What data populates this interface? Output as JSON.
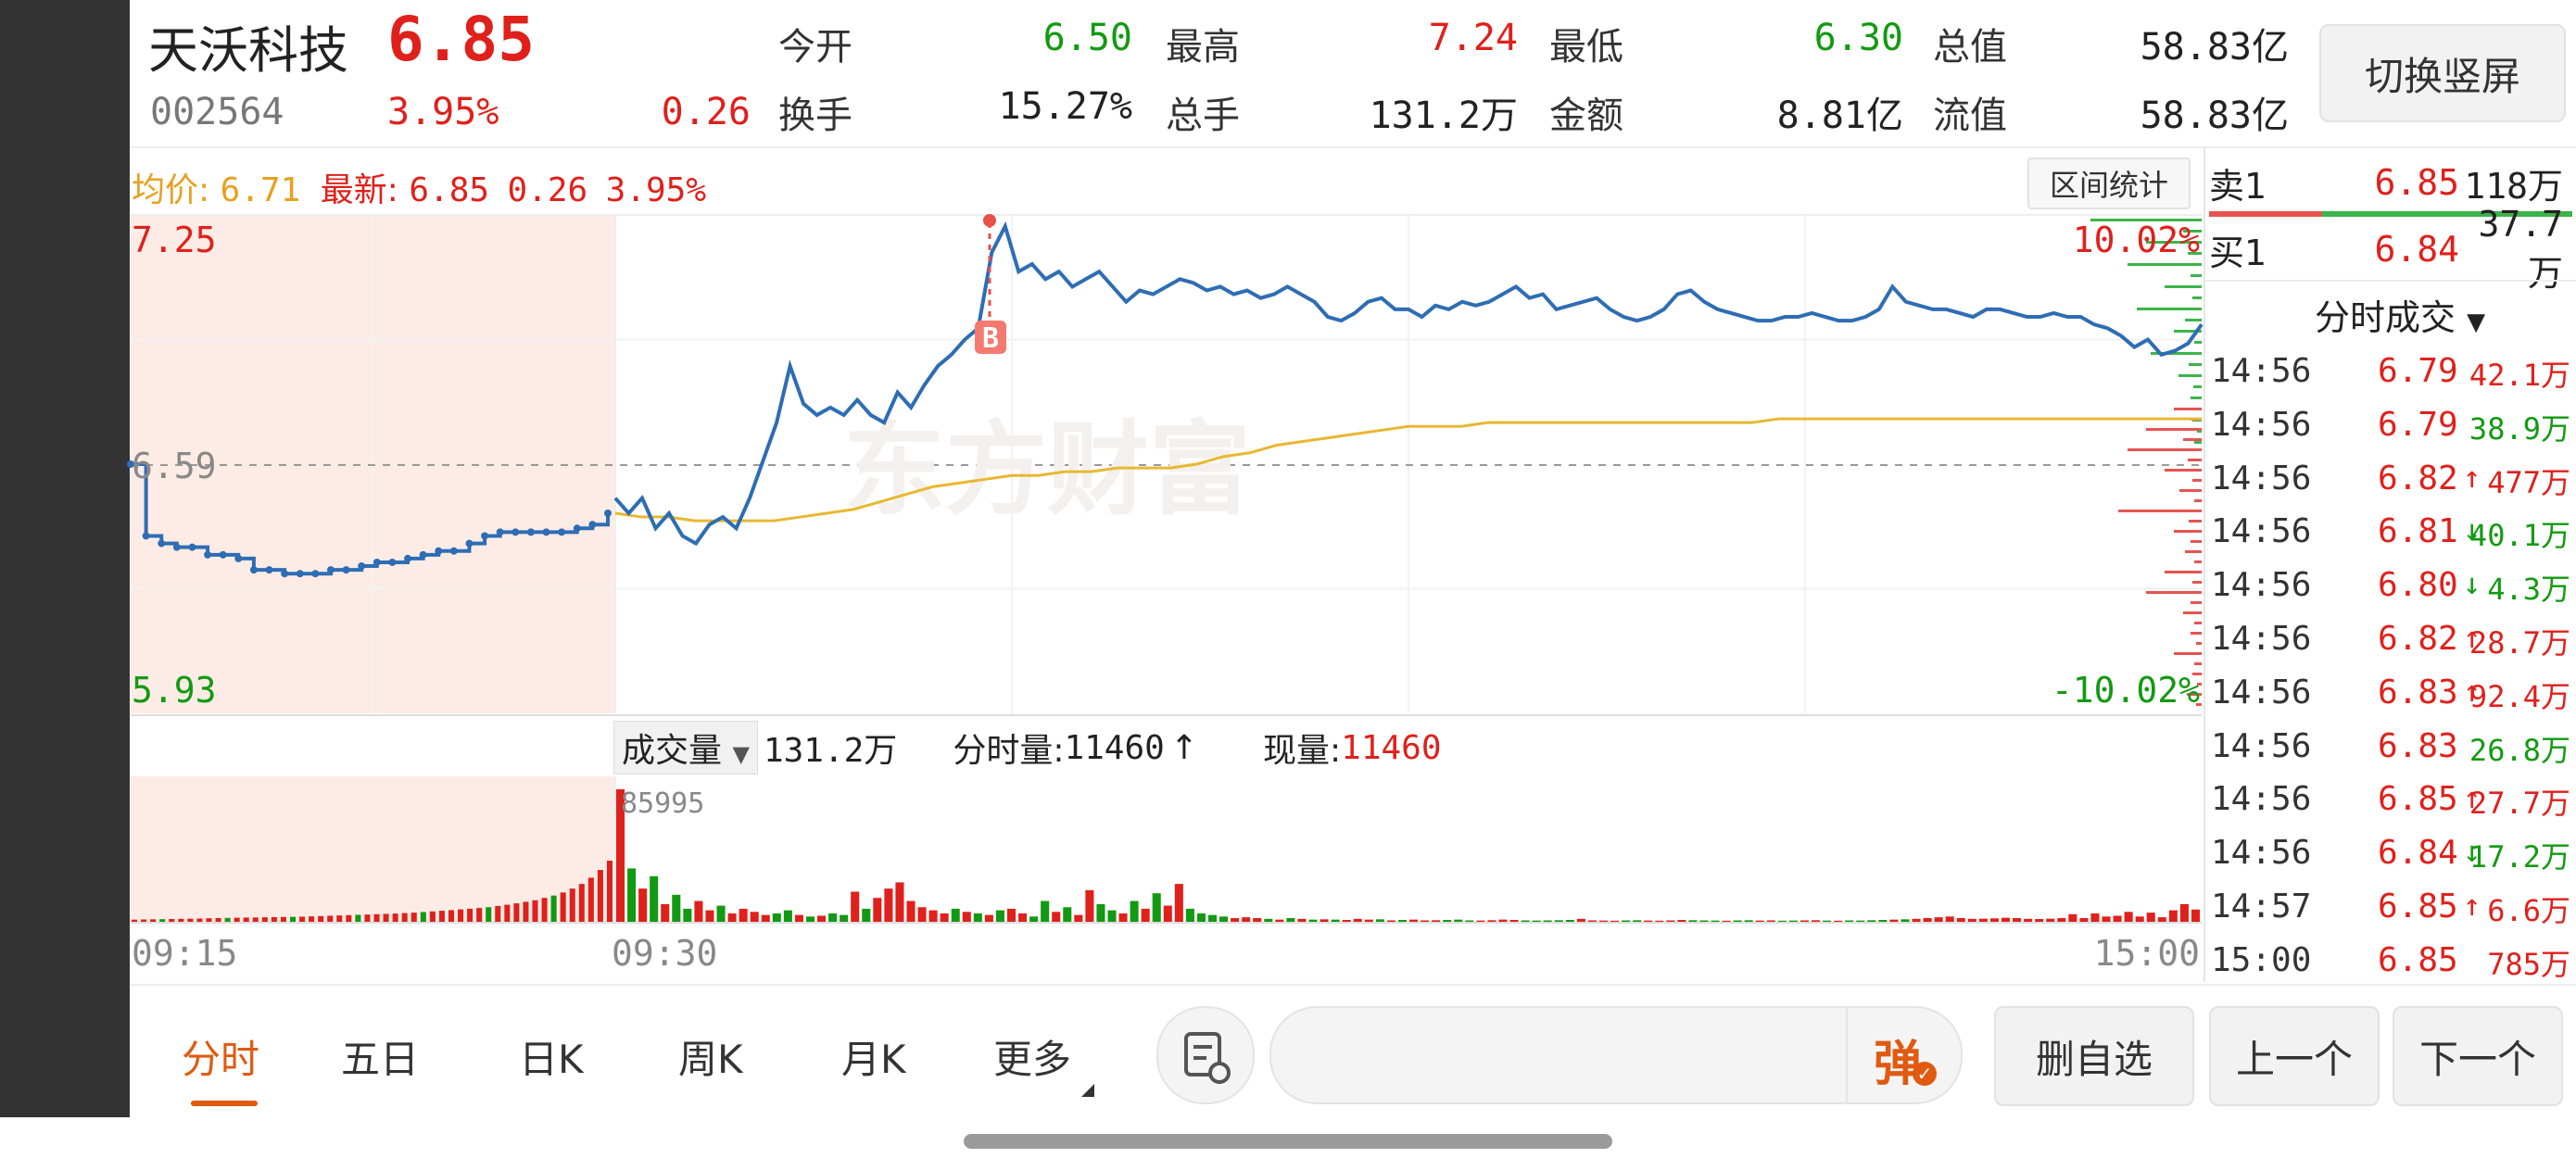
{
  "header": {
    "name": "天沃科技",
    "price": "6.85",
    "code": "002564",
    "change_pct": "3.95%",
    "change": "0.26",
    "stats": [
      {
        "label": "今开",
        "value": "6.50",
        "color": "#129a12"
      },
      {
        "label": "最高",
        "value": "7.24",
        "color": "#e0201b"
      },
      {
        "label": "最低",
        "value": "6.30",
        "color": "#129a12"
      },
      {
        "label": "总值",
        "value": "58.83亿",
        "color": "#222222"
      },
      {
        "label": "换手",
        "value": "15.27%",
        "color": "#222222"
      },
      {
        "label": "总手",
        "value": "131.2万",
        "color": "#222222"
      },
      {
        "label": "金额",
        "value": "8.81亿",
        "color": "#222222"
      },
      {
        "label": "流值",
        "value": "58.83亿",
        "color": "#222222"
      }
    ],
    "switch_button": "切换竖屏"
  },
  "summary_bar": {
    "avg_label": "均价:",
    "avg_value": "6.71",
    "latest_label": "最新:",
    "latest_value": "6.85",
    "latest_change": "0.26",
    "latest_pct": "3.95%",
    "range_button": "区间统计"
  },
  "watermark": "东方财富",
  "chart_data": {
    "type": "line",
    "prev_close": 6.59,
    "ylim": [
      5.93,
      7.25
    ],
    "tick_labels": {
      "top": "7.25",
      "mid": "6.59",
      "bottom": "5.93",
      "top_pct": "10.02%",
      "bottom_pct": "-10.02%"
    },
    "x_labels": [
      "09:15",
      "09:30",
      "15:00"
    ],
    "marker": "B",
    "auction_minutes": 15,
    "session_minutes": 240,
    "price_auction": [
      6.59,
      6.4,
      6.38,
      6.37,
      6.37,
      6.35,
      6.35,
      6.34,
      6.31,
      6.31,
      6.3,
      6.3,
      6.3,
      6.31,
      6.31,
      6.32,
      6.33,
      6.33,
      6.34,
      6.35,
      6.36,
      6.36,
      6.38,
      6.4,
      6.41,
      6.41,
      6.41,
      6.41,
      6.41,
      6.42,
      6.43,
      6.46
    ],
    "price": [
      6.5,
      6.46,
      6.5,
      6.42,
      6.46,
      6.4,
      6.38,
      6.43,
      6.45,
      6.42,
      6.5,
      6.6,
      6.7,
      6.85,
      6.75,
      6.72,
      6.74,
      6.72,
      6.76,
      6.72,
      6.7,
      6.78,
      6.74,
      6.8,
      6.85,
      6.88,
      6.92,
      6.95,
      7.15,
      7.22,
      7.1,
      7.12,
      7.08,
      7.1,
      7.06,
      7.08,
      7.1,
      7.06,
      7.02,
      7.05,
      7.04,
      7.06,
      7.08,
      7.07,
      7.05,
      7.06,
      7.04,
      7.05,
      7.03,
      7.04,
      7.06,
      7.04,
      7.02,
      6.98,
      6.97,
      6.99,
      7.02,
      7.03,
      7.0,
      7.0,
      6.98,
      7.01,
      7.0,
      7.02,
      7.01,
      7.02,
      7.04,
      7.06,
      7.03,
      7.04,
      7.0,
      7.01,
      7.02,
      7.03,
      7.0,
      6.98,
      6.97,
      6.98,
      7.0,
      7.04,
      7.05,
      7.02,
      7.0,
      6.99,
      6.98,
      6.97,
      6.97,
      6.98,
      6.98,
      6.99,
      6.98,
      6.97,
      6.97,
      6.98,
      7.0,
      7.06,
      7.02,
      7.01,
      7.0,
      7.0,
      6.99,
      6.98,
      7.0,
      7.0,
      6.99,
      6.98,
      6.98,
      6.99,
      6.98,
      6.98,
      6.96,
      6.95,
      6.93,
      6.9,
      6.92,
      6.88,
      6.89,
      6.91,
      6.96
    ],
    "avg": [
      6.46,
      6.45,
      6.45,
      6.44,
      6.44,
      6.44,
      6.44,
      6.45,
      6.46,
      6.47,
      6.49,
      6.51,
      6.53,
      6.54,
      6.55,
      6.56,
      6.56,
      6.57,
      6.57,
      6.58,
      6.58,
      6.58,
      6.59,
      6.61,
      6.62,
      6.64,
      6.65,
      6.66,
      6.67,
      6.68,
      6.69,
      6.69,
      6.69,
      6.7,
      6.7,
      6.7,
      6.7,
      6.7,
      6.7,
      6.7,
      6.7,
      6.7,
      6.7,
      6.7,
      6.71,
      6.71,
      6.71,
      6.71,
      6.71,
      6.71,
      6.71,
      6.71,
      6.71,
      6.71,
      6.71,
      6.71,
      6.71,
      6.71,
      6.71,
      6.71,
      6.71
    ],
    "volume_label": "成交量",
    "volume_total": "131.2万",
    "minute_volume_label": "分时量:",
    "minute_volume": "11460",
    "current_volume_label": "现量:",
    "current_volume": "11460",
    "vol_max_label": "85995",
    "vol_max": 85995,
    "volume_auction": [
      2000,
      2100,
      2200,
      2300,
      2400,
      2500,
      2600,
      2700,
      2900,
      3000,
      3100,
      3200,
      3300,
      3400,
      3500,
      3600,
      3700,
      3800,
      3900,
      4100,
      4300,
      4500,
      4700,
      4900,
      5100,
      5300,
      5500,
      5700,
      5900,
      6200,
      6500,
      6900,
      7300,
      7700,
      8100,
      8600,
      9000,
      9500,
      10000,
      10800,
      11600,
      12500,
      13500,
      14500,
      16000,
      17500,
      19500,
      22000,
      25000,
      29000,
      34000,
      40000
    ],
    "volume": [
      85995,
      35000,
      22000,
      30000,
      12000,
      18000,
      9000,
      14000,
      8000,
      11000,
      6000,
      9000,
      7000,
      5000,
      6000,
      8000,
      5000,
      4000,
      4500,
      6000,
      5000,
      20000,
      9000,
      16000,
      22000,
      26000,
      14000,
      10000,
      8000,
      6000,
      9000,
      7000,
      6000,
      5000,
      8000,
      9000,
      6000,
      4000,
      14000,
      7000,
      10000,
      5000,
      21000,
      12000,
      8000,
      6000,
      14000,
      9000,
      19000,
      11000,
      25000,
      9000,
      6000,
      5000,
      4000,
      3000,
      3500,
      3000,
      2500,
      2000,
      3000,
      2500,
      2000,
      2200,
      2000,
      1800,
      2500,
      2000,
      2200,
      1500,
      1800,
      2000,
      1500,
      1600,
      1800,
      2000,
      1500,
      1400,
      1600,
      2000,
      1800,
      1500,
      1400,
      1500,
      1600,
      1800,
      2500,
      1500,
      1400,
      1300,
      1500,
      1600,
      1400,
      1300,
      1500,
      1800,
      1600,
      1500,
      1400,
      1300,
      1500,
      1600,
      1400,
      1500,
      1300,
      1400,
      1500,
      1600,
      1400,
      1300,
      1500,
      1400,
      1600,
      1800,
      2000,
      2200,
      2500,
      3000,
      3500,
      4000,
      3000,
      2500,
      2600,
      2800,
      3200,
      3000,
      2500,
      2400,
      2600,
      3000,
      5500,
      3000,
      6000,
      4000,
      4500,
      7000,
      4000,
      6500,
      3500,
      8000,
      12000,
      8500
    ],
    "volume_colors_note": "red=up green=down"
  },
  "order_book": {
    "ask_label": "卖1",
    "ask_price": "6.85",
    "ask_vol": "118万",
    "bid_label": "买1",
    "bid_price": "6.84",
    "bid_vol": "37.7万",
    "ticks_title": "分时成交"
  },
  "ticks": [
    {
      "time": "14:56",
      "price": "6.79",
      "arrow": "",
      "vol": "42.1万",
      "vol_color": "#e0201b"
    },
    {
      "time": "14:56",
      "price": "6.79",
      "arrow": "",
      "vol": "38.9万",
      "vol_color": "#129a12"
    },
    {
      "time": "14:56",
      "price": "6.82",
      "arrow": "↑",
      "vol": "477万",
      "vol_color": "#e0201b"
    },
    {
      "time": "14:56",
      "price": "6.81",
      "arrow": "↓",
      "vol": "40.1万",
      "vol_color": "#129a12"
    },
    {
      "time": "14:56",
      "price": "6.80",
      "arrow": "↓",
      "vol": "4.3万",
      "vol_color": "#129a12"
    },
    {
      "time": "14:56",
      "price": "6.82",
      "arrow": "↑",
      "vol": "28.7万",
      "vol_color": "#e0201b"
    },
    {
      "time": "14:56",
      "price": "6.83",
      "arrow": "↑",
      "vol": "92.4万",
      "vol_color": "#e0201b"
    },
    {
      "time": "14:56",
      "price": "6.83",
      "arrow": "",
      "vol": "26.8万",
      "vol_color": "#129a12"
    },
    {
      "time": "14:56",
      "price": "6.85",
      "arrow": "↑",
      "vol": "27.7万",
      "vol_color": "#e0201b"
    },
    {
      "time": "14:56",
      "price": "6.84",
      "arrow": "↓",
      "vol": "17.2万",
      "vol_color": "#129a12"
    },
    {
      "time": "14:57",
      "price": "6.85",
      "arrow": "↑",
      "vol": "6.6万",
      "vol_color": "#e0201b"
    },
    {
      "time": "15:00",
      "price": "6.85",
      "arrow": "",
      "vol": "785万",
      "vol_color": "#e0201b"
    }
  ],
  "bottom_bar": {
    "tabs": [
      "分时",
      "五日",
      "日K",
      "周K",
      "月K",
      "更多"
    ],
    "danmu_label": "弹",
    "delete_button": "删自选",
    "prev_button": "上一个",
    "next_button": "下一个"
  },
  "colors": {
    "up": "#e0201b",
    "down": "#129a12",
    "price_line": "#2e6db4",
    "avg_line": "#e8b830",
    "accent": "#e05a10"
  }
}
